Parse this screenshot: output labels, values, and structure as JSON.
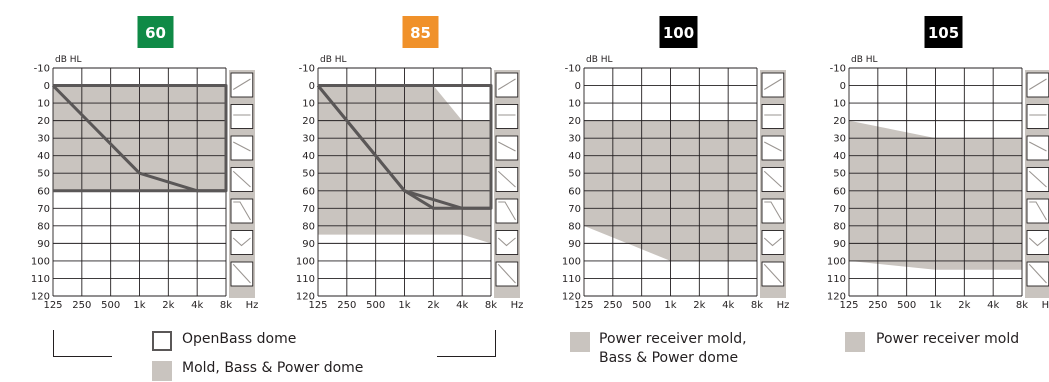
{
  "charts": [
    {
      "badge": "60",
      "badge_color": "#0f8a46",
      "fill_polygon": [
        [
          0,
          0
        ],
        [
          6,
          0
        ],
        [
          6,
          60
        ],
        [
          0,
          60
        ]
      ],
      "box": [
        [
          0,
          0
        ],
        [
          6,
          0
        ],
        [
          6,
          60
        ],
        [
          0,
          60
        ]
      ],
      "line": [
        [
          0,
          0
        ],
        [
          3,
          50
        ],
        [
          5,
          60
        ],
        [
          6,
          60
        ]
      ]
    },
    {
      "badge": "85",
      "badge_color": "#f0912a",
      "fill_polygon": [
        [
          0,
          0
        ],
        [
          4,
          0
        ],
        [
          5,
          20
        ],
        [
          6,
          20
        ],
        [
          6,
          90
        ],
        [
          5,
          85
        ],
        [
          0,
          85
        ]
      ],
      "box": [
        [
          0,
          0
        ],
        [
          6,
          0
        ],
        [
          6,
          70
        ],
        [
          5,
          70
        ],
        [
          4,
          70
        ],
        [
          3,
          60
        ],
        [
          0,
          0
        ]
      ],
      "line": [
        [
          0,
          0
        ],
        [
          3,
          60
        ],
        [
          5,
          70
        ],
        [
          6,
          70
        ]
      ]
    },
    {
      "badge": "100",
      "badge_color": "#000000",
      "fill_polygon": [
        [
          0,
          20
        ],
        [
          6,
          20
        ],
        [
          6,
          100
        ],
        [
          3,
          100
        ],
        [
          0,
          80
        ]
      ],
      "box": null,
      "line": null
    },
    {
      "badge": "105",
      "badge_color": "#000000",
      "fill_polygon": [
        [
          0,
          20
        ],
        [
          3,
          30
        ],
        [
          6,
          30
        ],
        [
          6,
          105
        ],
        [
          3,
          105
        ],
        [
          0,
          100
        ]
      ],
      "box": null,
      "line": null
    }
  ],
  "chart_data": {
    "type": "area",
    "y_axis_unit": "dB HL",
    "y_ticks": [
      "-10",
      "0",
      "10",
      "20",
      "30",
      "40",
      "50",
      "60",
      "70",
      "80",
      "90",
      "100",
      "110",
      "120"
    ],
    "x_axis_unit": "Hz",
    "x_ticks": [
      "125",
      "250",
      "500",
      "1k",
      "2k",
      "4k",
      "8k"
    ],
    "ylim": [
      -10,
      120
    ]
  },
  "legend": {
    "group1": {
      "openbass": "OpenBass dome",
      "mold_bass_power": "Mold, Bass & Power dome"
    },
    "group2": {
      "power_receiver_line1": "Power receiver mold,",
      "power_receiver_line2": "Bass & Power dome"
    },
    "group3": {
      "power_receiver_mold": "Power receiver mold"
    }
  },
  "colors": {
    "fill": "#c9c4bf",
    "line": "#5a5757",
    "grid": "#231f20"
  }
}
